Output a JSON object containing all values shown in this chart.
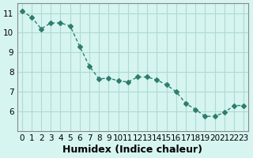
{
  "x": [
    0,
    1,
    2,
    3,
    4,
    5,
    6,
    7,
    8,
    9,
    10,
    11,
    12,
    13,
    14,
    15,
    16,
    17,
    18,
    19,
    20,
    21,
    22,
    23
  ],
  "y": [
    11.1,
    10.8,
    10.2,
    10.5,
    10.5,
    10.35,
    9.3,
    8.3,
    7.65,
    7.7,
    7.55,
    7.5,
    7.75,
    7.75,
    7.6,
    7.35,
    7.0,
    6.4,
    6.1,
    5.75,
    5.75,
    5.95,
    6.3,
    6.3
  ],
  "line_color": "#2e7d6e",
  "marker": "D",
  "marker_size": 3,
  "bg_color": "#d6f5f0",
  "grid_color": "#b0d9d3",
  "xlabel": "Humidex (Indice chaleur)",
  "xlim": [
    -0.5,
    23.5
  ],
  "ylim": [
    5.0,
    11.5
  ],
  "yticks": [
    6,
    7,
    8,
    9,
    10,
    11
  ],
  "xticks": [
    0,
    1,
    2,
    3,
    4,
    5,
    6,
    7,
    8,
    9,
    10,
    11,
    12,
    13,
    14,
    15,
    16,
    17,
    18,
    19,
    20,
    21,
    22,
    23
  ],
  "xlabel_fontsize": 9,
  "tick_fontsize": 7.5,
  "title_fontsize": 8
}
